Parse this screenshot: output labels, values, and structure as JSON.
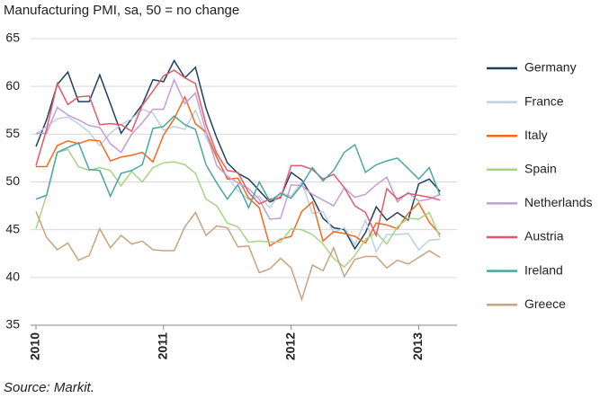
{
  "chart_data": {
    "type": "line",
    "title": "Manufacturing PMI, sa, 50 = no change",
    "source": "Source: Markit.",
    "x": [
      2010,
      2010.083,
      2010.167,
      2010.25,
      2010.333,
      2010.417,
      2010.5,
      2010.583,
      2010.667,
      2010.75,
      2010.833,
      2010.917,
      2011,
      2011.083,
      2011.167,
      2011.25,
      2011.333,
      2011.417,
      2011.5,
      2011.583,
      2011.667,
      2011.75,
      2011.833,
      2011.917,
      2012,
      2012.083,
      2012.167,
      2012.25,
      2012.333,
      2012.417,
      2012.5,
      2012.583,
      2012.667,
      2012.75,
      2012.833,
      2012.917,
      2013,
      2013.083,
      2013.167
    ],
    "xlim": [
      2010,
      2013.3
    ],
    "xticks": [
      2010,
      2011,
      2012,
      2013
    ],
    "ylim": [
      35,
      65
    ],
    "yticks": [
      35,
      40,
      45,
      50,
      55,
      60,
      65
    ],
    "grid": true,
    "legend": "right",
    "series": [
      {
        "name": "Germany",
        "color": "#1f3f60",
        "values": [
          53.7,
          56.5,
          60.2,
          61.5,
          58.4,
          58.4,
          61.2,
          58.2,
          55.1,
          56.6,
          58.1,
          60.7,
          60.5,
          62.7,
          60.9,
          62.0,
          57.7,
          54.6,
          52.0,
          50.9,
          50.3,
          49.1,
          47.9,
          48.4,
          51.0,
          50.2,
          48.4,
          46.2,
          45.2,
          45.0,
          43.0,
          44.7,
          47.4,
          46.0,
          46.8,
          46.0,
          49.8,
          50.3,
          49.0
        ]
      },
      {
        "name": "France",
        "color": "#bcd0e2",
        "values": [
          55.0,
          55.8,
          56.6,
          56.8,
          56.1,
          55.2,
          53.8,
          55.1,
          56.0,
          56.6,
          57.6,
          57.2,
          55.4,
          55.8,
          55.5,
          57.5,
          54.7,
          52.5,
          50.5,
          49.1,
          48.2,
          48.5,
          47.3,
          48.9,
          48.5,
          50.0,
          46.7,
          46.9,
          44.7,
          45.2,
          43.4,
          46.0,
          42.7,
          44.5,
          44.5,
          44.6,
          42.9,
          43.9,
          44.0
        ]
      },
      {
        "name": "Italy",
        "color": "#f06a1e",
        "values": [
          51.6,
          51.6,
          53.8,
          54.3,
          54.0,
          54.4,
          54.3,
          52.2,
          52.6,
          52.8,
          53.1,
          52.1,
          54.9,
          56.6,
          58.9,
          56.1,
          55.2,
          52.6,
          50.3,
          50.4,
          48.3,
          47.3,
          43.3,
          44.0,
          44.3,
          46.9,
          47.9,
          43.8,
          44.8,
          44.6,
          44.3,
          43.6,
          45.7,
          45.5,
          45.1,
          46.7,
          47.8,
          45.8,
          44.5
        ]
      },
      {
        "name": "Spain",
        "color": "#a6d485",
        "values": [
          45.1,
          48.6,
          53.1,
          53.4,
          51.6,
          51.2,
          51.5,
          51.2,
          49.6,
          51.1,
          50.0,
          51.5,
          52.0,
          52.1,
          51.8,
          50.9,
          48.2,
          47.5,
          45.7,
          45.3,
          43.7,
          43.8,
          43.7,
          43.7,
          45.1,
          45.0,
          44.5,
          43.5,
          42.0,
          41.1,
          42.3,
          44.0,
          44.7,
          43.5,
          45.3,
          46.2,
          46.1,
          46.8,
          44.2
        ]
      },
      {
        "name": "Netherlands",
        "color": "#c59bd8",
        "values": [
          55.1,
          55.1,
          57.8,
          57.0,
          56.5,
          55.9,
          55.7,
          54.0,
          53.1,
          55.0,
          56.2,
          57.6,
          57.6,
          60.7,
          58.2,
          59.3,
          55.2,
          51.7,
          50.6,
          49.9,
          49.3,
          48.2,
          46.1,
          46.2,
          49.7,
          49.6,
          48.7,
          48.1,
          47.5,
          49.4,
          48.4,
          48.7,
          49.7,
          50.5,
          47.9,
          48.9,
          48.0,
          48.2,
          48.7
        ]
      },
      {
        "name": "Austria",
        "color": "#e4596a",
        "values": [
          51.7,
          55.5,
          60.3,
          58.1,
          58.9,
          59.0,
          56.0,
          56.1,
          56.0,
          55.3,
          58.0,
          59.5,
          61.1,
          61.7,
          60.9,
          60.3,
          56.0,
          53.0,
          51.2,
          51.0,
          48.9,
          47.7,
          48.2,
          48.3,
          51.7,
          51.7,
          51.3,
          50.3,
          50.8,
          49.4,
          47.5,
          46.8,
          44.4,
          49.3,
          48.2,
          48.8,
          48.6,
          48.4,
          48.1
        ]
      },
      {
        "name": "Ireland",
        "color": "#4aa7a0",
        "values": [
          48.2,
          48.6,
          53.1,
          53.6,
          54.1,
          51.3,
          51.2,
          48.5,
          50.9,
          51.2,
          51.8,
          55.6,
          55.8,
          56.9,
          56.0,
          55.5,
          51.8,
          49.9,
          48.2,
          49.7,
          47.3,
          50.0,
          48.0,
          48.8,
          48.3,
          49.7,
          51.5,
          50.1,
          51.2,
          53.1,
          53.9,
          51.0,
          51.8,
          52.2,
          52.5,
          51.4,
          50.3,
          51.5,
          48.6
        ]
      },
      {
        "name": "Greece",
        "color": "#c9a27f",
        "values": [
          46.9,
          44.2,
          42.9,
          43.6,
          41.8,
          42.3,
          45.1,
          43.1,
          44.4,
          43.5,
          43.8,
          42.9,
          42.8,
          42.8,
          45.3,
          46.8,
          44.4,
          45.4,
          45.2,
          43.2,
          43.3,
          40.5,
          40.9,
          42.0,
          41.0,
          37.7,
          41.3,
          40.7,
          43.1,
          40.1,
          41.9,
          42.2,
          42.2,
          41.0,
          41.8,
          41.4,
          42.1,
          42.8,
          42.1
        ]
      }
    ]
  }
}
